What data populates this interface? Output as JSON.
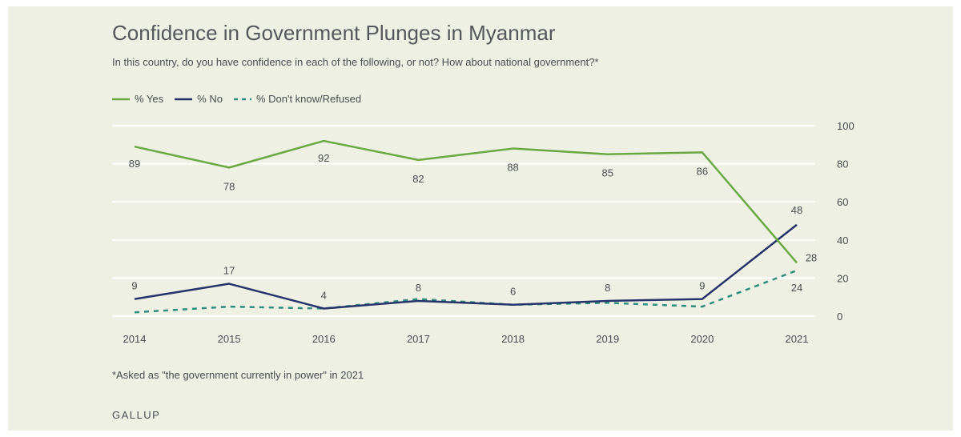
{
  "title": "Confidence in Government Plunges in Myanmar",
  "subtitle": "In this country, do you have confidence in each of the following, or not? How about national government?*",
  "footnote": "*Asked as \"the government currently in power\" in 2021",
  "source": "GALLUP",
  "colors": {
    "yes": "#6aa942",
    "no": "#25336a",
    "dk": "#2f8d7d",
    "grid": "#ffffff",
    "text": "#4a4d50"
  },
  "chart_data": {
    "type": "line",
    "x": [
      "2014",
      "2015",
      "2016",
      "2017",
      "2018",
      "2019",
      "2020",
      "2021"
    ],
    "ylim": [
      0,
      100
    ],
    "yticks": [
      0,
      20,
      40,
      60,
      80,
      100
    ],
    "ytick_labels": [
      "0",
      "20",
      "40",
      "60",
      "80",
      "100"
    ],
    "y_axis_side": "right",
    "grid": true,
    "legend_position": "top-left",
    "series": [
      {
        "name": "% Yes",
        "values": [
          89,
          78,
          92,
          82,
          88,
          85,
          86,
          28
        ],
        "style": "solid",
        "labels": [
          "89",
          "78",
          "92",
          "82",
          "88",
          "85",
          "86",
          "28"
        ]
      },
      {
        "name": "% No",
        "values": [
          9,
          17,
          4,
          8,
          6,
          8,
          9,
          48
        ],
        "style": "solid",
        "labels": [
          "9",
          "17",
          "4",
          "8",
          "6",
          "8",
          "9",
          "48"
        ]
      },
      {
        "name": "% Don't know/Refused",
        "values": [
          2,
          5,
          4,
          9,
          6,
          7,
          5,
          24
        ],
        "style": "dashed",
        "labels": [
          "",
          "",
          "",
          "",
          "",
          "",
          "",
          "24"
        ]
      }
    ]
  }
}
